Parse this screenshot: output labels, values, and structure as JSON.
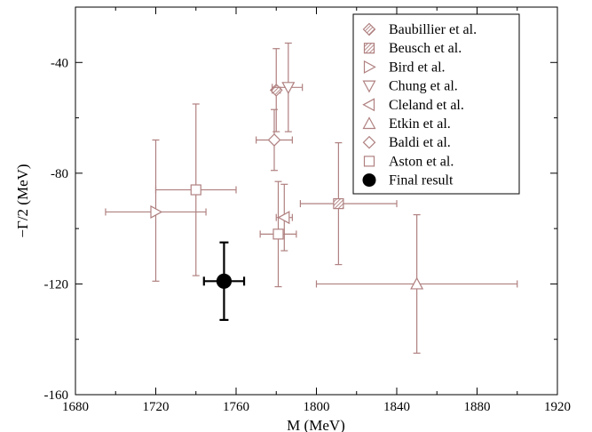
{
  "chart_data": {
    "type": "scatter",
    "xlabel": "M (MeV)",
    "ylabel": "−Γ/2 (MeV)",
    "xlim": [
      1680,
      1920
    ],
    "ylim": [
      -160,
      -20
    ],
    "x_ticks": [
      1680,
      1720,
      1760,
      1800,
      1840,
      1880,
      1920
    ],
    "y_ticks": [
      -160,
      -120,
      -80,
      -40
    ],
    "x_tick_labels": [
      "1680",
      "1720",
      "1760",
      "1800",
      "1840",
      "1880",
      "1920"
    ],
    "y_tick_labels": [
      "-160",
      "-120",
      "-80",
      "-40"
    ],
    "grid": false,
    "legend_position": "top-right",
    "colors": {
      "data": "#b08080",
      "final": "#000000"
    },
    "series": [
      {
        "name": "Baubillier et al.",
        "marker": "diamond-half",
        "color": "#b08080",
        "points": [
          {
            "x": 1780,
            "y": -50,
            "xerr": [
              2,
              2
            ],
            "yerr": [
              15,
              15
            ]
          }
        ]
      },
      {
        "name": "Beusch et al.",
        "marker": "square-hatched",
        "color": "#b08080",
        "points": [
          {
            "x": 1811,
            "y": -91,
            "xerr": [
              19,
              29
            ],
            "yerr": [
              22,
              22
            ]
          }
        ]
      },
      {
        "name": "Bird et al.",
        "marker": "triangle-right",
        "color": "#b08080",
        "points": [
          {
            "x": 1720,
            "y": -94,
            "xerr": [
              25,
              25
            ],
            "yerr": [
              25,
              26
            ]
          }
        ]
      },
      {
        "name": "Chung et al.",
        "marker": "triangle-down",
        "color": "#b08080",
        "points": [
          {
            "x": 1786,
            "y": -49,
            "xerr": [
              8,
              7
            ],
            "yerr": [
              16,
              16
            ]
          }
        ]
      },
      {
        "name": "Cleland et al.",
        "marker": "triangle-left",
        "color": "#b08080",
        "points": [
          {
            "x": 1784,
            "y": -96,
            "xerr": [
              4,
              4
            ],
            "yerr": [
              12,
              12
            ]
          }
        ]
      },
      {
        "name": "Etkin et al.",
        "marker": "triangle-up",
        "color": "#b08080",
        "points": [
          {
            "x": 1850,
            "y": -120,
            "xerr": [
              50,
              50
            ],
            "yerr": [
              25,
              25
            ]
          }
        ]
      },
      {
        "name": "Baldi et al.",
        "marker": "diamond",
        "color": "#b08080",
        "points": [
          {
            "x": 1779,
            "y": -68,
            "xerr": [
              9,
              9
            ],
            "yerr": [
              11,
              11
            ]
          }
        ]
      },
      {
        "name": "Aston et al.",
        "marker": "square",
        "color": "#b08080",
        "points": [
          {
            "x": 1740,
            "y": -86,
            "xerr": [
              20,
              20
            ],
            "yerr": [
              31,
              31
            ]
          },
          {
            "x": 1781,
            "y": -102,
            "xerr": [
              9,
              9
            ],
            "yerr": [
              19,
              19
            ]
          }
        ]
      },
      {
        "name": "Final result",
        "marker": "circle-filled",
        "color": "#000000",
        "points": [
          {
            "x": 1754,
            "y": -119,
            "xerr": [
              10,
              10
            ],
            "yerr": [
              14,
              14
            ]
          }
        ]
      }
    ]
  }
}
